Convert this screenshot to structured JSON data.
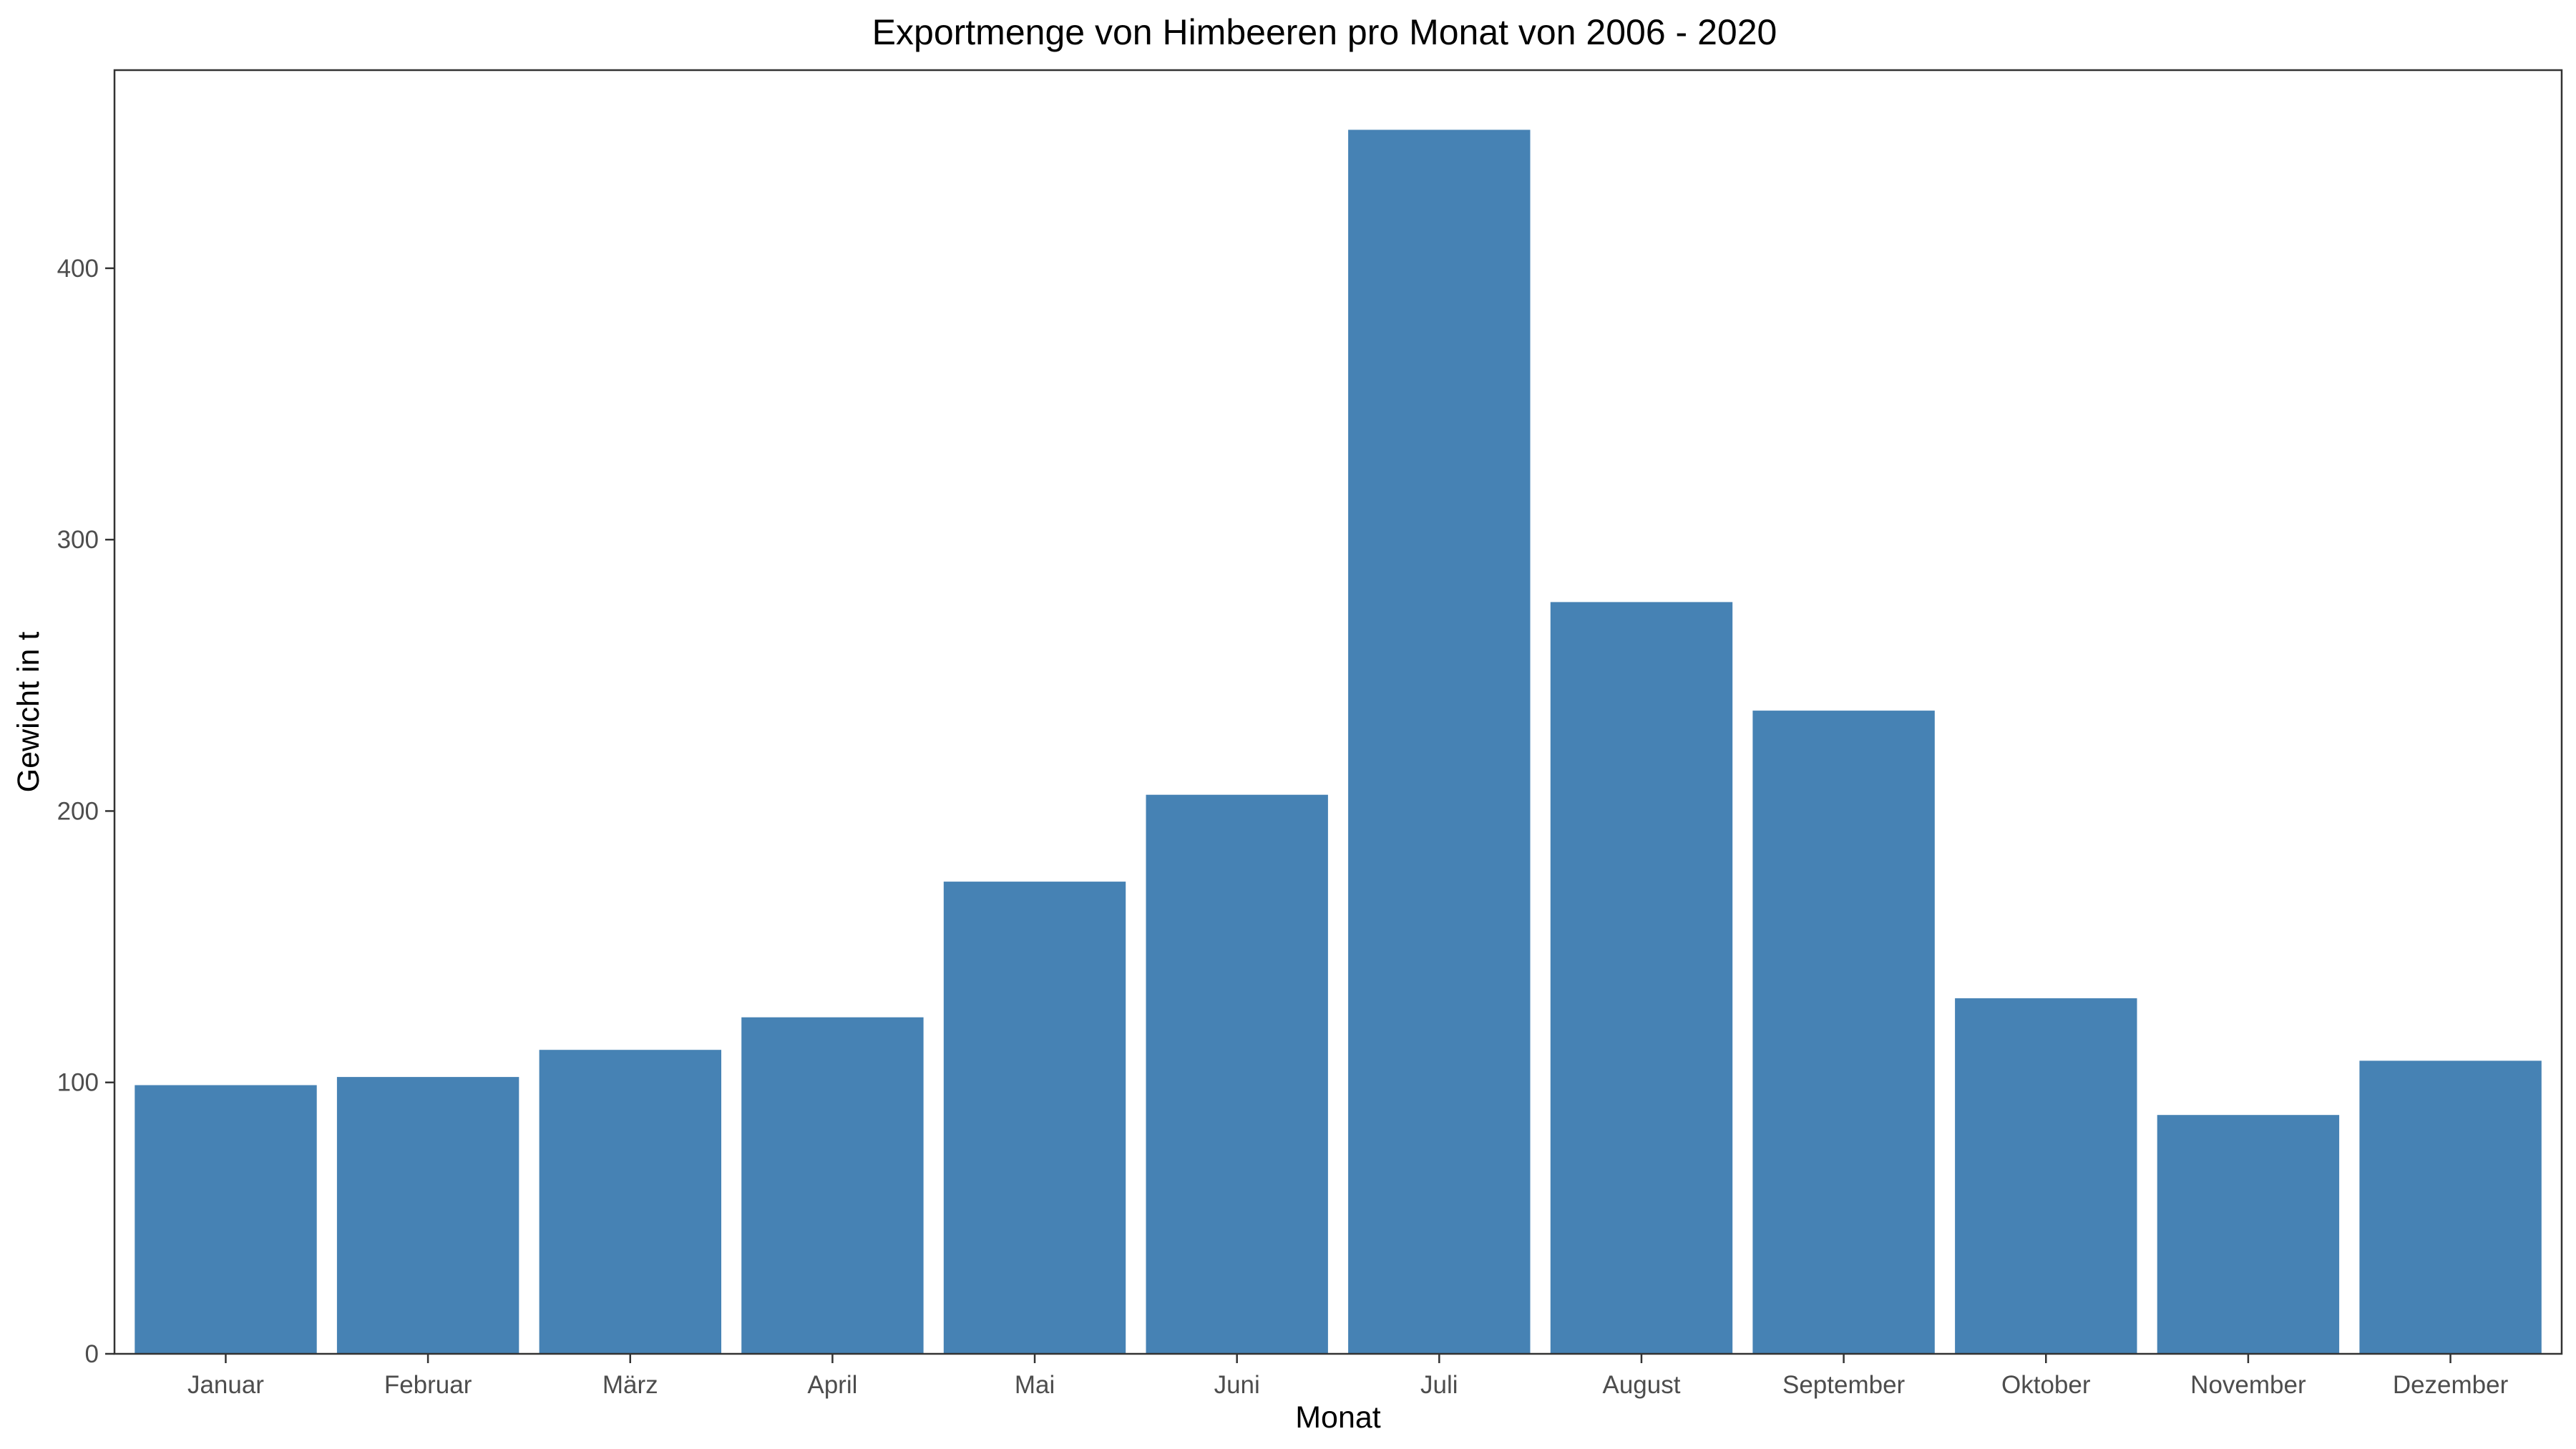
{
  "chart_data": {
    "type": "bar",
    "title": "Exportmenge von Himbeeren pro Monat von 2006 - 2020",
    "xlabel": "Monat",
    "ylabel": "Gewicht in t",
    "categories": [
      "Januar",
      "Februar",
      "März",
      "April",
      "Mai",
      "Juni",
      "Juli",
      "August",
      "September",
      "Oktober",
      "November",
      "Dezember"
    ],
    "values": [
      99,
      102,
      112,
      124,
      174,
      206,
      451,
      277,
      237,
      131,
      88,
      108
    ],
    "yticks": [
      0,
      100,
      200,
      300,
      400
    ],
    "ylim": [
      0,
      473
    ],
    "grid": false,
    "bar_color": "#4682b4"
  }
}
